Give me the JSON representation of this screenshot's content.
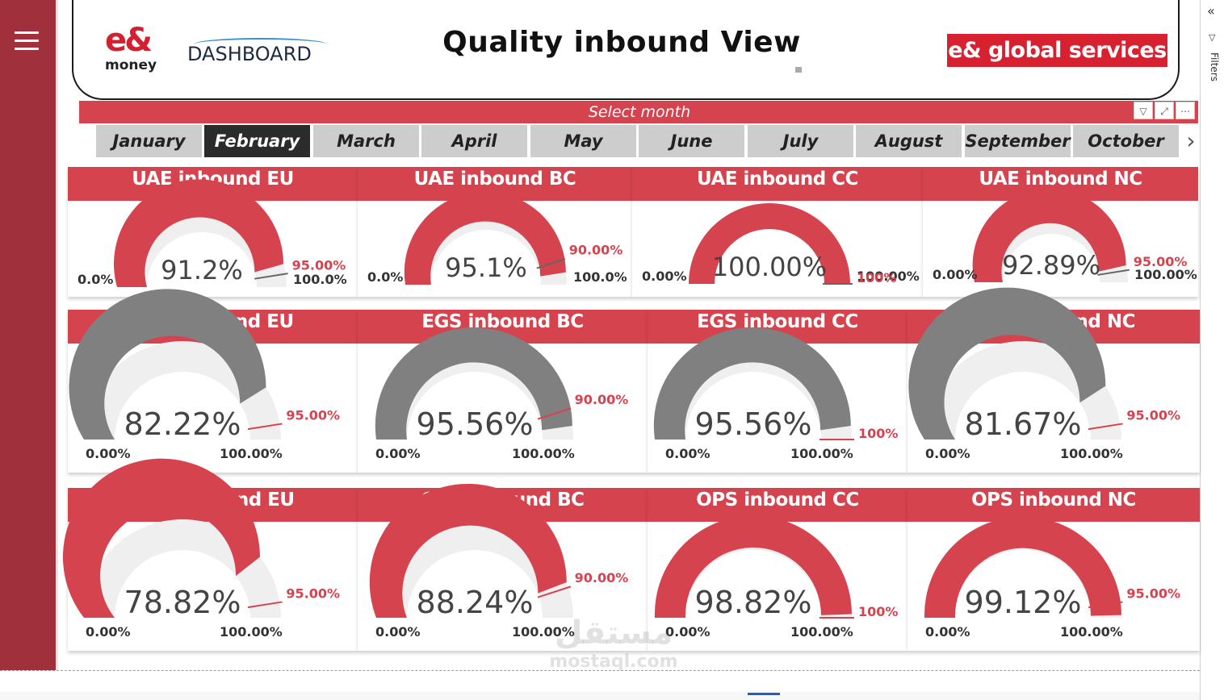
{
  "header": {
    "title": "Quality inbound View",
    "logo_left_top": "e&",
    "logo_left_bottom": "money",
    "logo_dashboard": "DASHBOARD",
    "logo_right": "e& global services"
  },
  "right_panel": {
    "filters_label": "Filters"
  },
  "slicer": {
    "title": "Select month",
    "months": [
      "January",
      "February",
      "March",
      "April",
      "May",
      "June",
      "July",
      "August",
      "September",
      "October"
    ],
    "selected": "February"
  },
  "colors": {
    "accent": "#d5434f",
    "gauge_grey": "#808080",
    "track": "#efefef",
    "rail": "#a0303c"
  },
  "gauges": [
    {
      "title": "UAE inbound EU",
      "value": "91.2%",
      "value_num": 91.2,
      "fill": "red",
      "min": "0.0%",
      "max": "100.0%",
      "target": "95.00%",
      "target_num": 95
    },
    {
      "title": "UAE inbound BC",
      "value": "95.1%",
      "value_num": 95.1,
      "fill": "red",
      "min": "0.0%",
      "max": "100.0%",
      "target": "90.00%",
      "target_num": 90
    },
    {
      "title": "UAE inbound CC",
      "value": "100.00%",
      "value_num": 100,
      "fill": "red",
      "min": "0.00%",
      "max": "100.00%",
      "target": "100%",
      "target_num": 100
    },
    {
      "title": "UAE inbound NC",
      "value": "92.89%",
      "value_num": 92.89,
      "fill": "red",
      "min": "0.00%",
      "max": "100.00%",
      "target": "95.00%",
      "target_num": 95
    },
    {
      "title": "EGS inbound EU",
      "value": "82.22%",
      "value_num": 82.22,
      "fill": "grey",
      "min": "0.00%",
      "max": "100.00%",
      "target": "95.00%",
      "target_num": 95
    },
    {
      "title": "EGS inbound BC",
      "value": "95.56%",
      "value_num": 95.56,
      "fill": "grey",
      "min": "0.00%",
      "max": "100.00%",
      "target": "90.00%",
      "target_num": 90
    },
    {
      "title": "EGS inbound CC",
      "value": "95.56%",
      "value_num": 95.56,
      "fill": "grey",
      "min": "0.00%",
      "max": "100.00%",
      "target": "100%",
      "target_num": 100
    },
    {
      "title": "EGS inbound NC",
      "value": "81.67%",
      "value_num": 81.67,
      "fill": "grey",
      "min": "0.00%",
      "max": "100.00%",
      "target": "95.00%",
      "target_num": 95
    },
    {
      "title": "OPS inbound EU",
      "value": "78.82%",
      "value_num": 78.82,
      "fill": "red",
      "min": "0.00%",
      "max": "100.00%",
      "target": "95.00%",
      "target_num": 95
    },
    {
      "title": "OPS inbound BC",
      "value": "88.24%",
      "value_num": 88.24,
      "fill": "red",
      "min": "0.00%",
      "max": "100.00%",
      "target": "90.00%",
      "target_num": 90
    },
    {
      "title": "OPS inbound CC",
      "value": "98.82%",
      "value_num": 98.82,
      "fill": "red",
      "min": "0.00%",
      "max": "100.00%",
      "target": "100%",
      "target_num": 100
    },
    {
      "title": "OPS inbound NC",
      "value": "99.12%",
      "value_num": 99.12,
      "fill": "red",
      "min": "0.00%",
      "max": "100.00%",
      "target": "95.00%",
      "target_num": 95
    }
  ],
  "watermark": {
    "line1": "مستقل",
    "line2": "mostaql.com"
  }
}
